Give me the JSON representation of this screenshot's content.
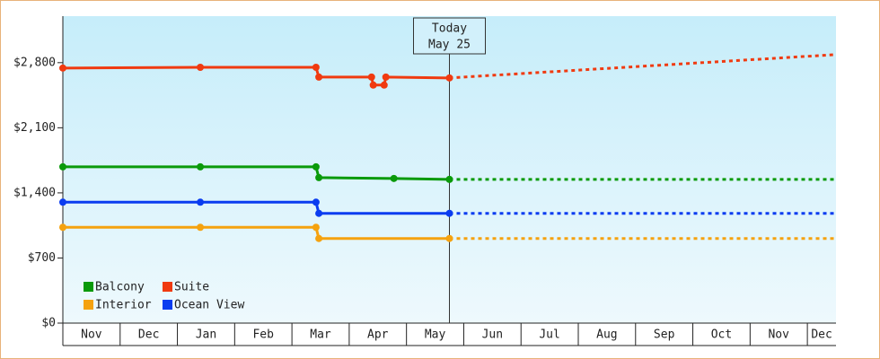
{
  "chart_data": {
    "type": "line",
    "categories": [
      "Nov",
      "Dec",
      "Jan",
      "Feb",
      "Mar",
      "Apr",
      "May",
      "Jun",
      "Jul",
      "Aug",
      "Sep",
      "Oct",
      "Nov",
      "Dec"
    ],
    "xlim": [
      0,
      13.5
    ],
    "ylim": [
      0,
      3300
    ],
    "yticks": [
      {
        "value": 0,
        "label": "$0"
      },
      {
        "value": 700,
        "label": "$700"
      },
      {
        "value": 1400,
        "label": "$1,400"
      },
      {
        "value": 2100,
        "label": "$2,100"
      },
      {
        "value": 2800,
        "label": "$2,800"
      }
    ],
    "annotation": {
      "x": 6.75,
      "lines": [
        "Today",
        "May 25"
      ]
    },
    "series": [
      {
        "name": "Balcony",
        "color": "#0a9a0a",
        "x": [
          0,
          2.4,
          4.42,
          4.47,
          5.78,
          6.75
        ],
        "values": [
          1680,
          1680,
          1680,
          1564,
          1555,
          1545
        ],
        "forecast": {
          "x": [
            6.75,
            13.5
          ],
          "values": [
            1545,
            1545
          ]
        }
      },
      {
        "name": "Suite",
        "color": "#f03a10",
        "x": [
          0,
          2.4,
          4.42,
          4.47,
          5.39,
          5.42,
          5.61,
          5.64,
          6.75
        ],
        "values": [
          2742,
          2750,
          2750,
          2645,
          2645,
          2559,
          2559,
          2645,
          2636
        ],
        "forecast": {
          "x": [
            6.75,
            13.5
          ],
          "values": [
            2636,
            2887
          ]
        }
      },
      {
        "name": "Interior",
        "color": "#f5a20f",
        "x": [
          0,
          2.4,
          4.42,
          4.47,
          6.75
        ],
        "values": [
          1030,
          1030,
          1030,
          910,
          910
        ],
        "forecast": {
          "x": [
            6.75,
            13.5
          ],
          "values": [
            910,
            910
          ]
        }
      },
      {
        "name": "Ocean View",
        "color": "#0a3cf0",
        "x": [
          0,
          2.4,
          4.42,
          4.47,
          6.75
        ],
        "values": [
          1300,
          1300,
          1300,
          1180,
          1180
        ],
        "forecast": {
          "x": [
            6.75,
            13.5
          ],
          "values": [
            1180,
            1180
          ]
        }
      }
    ]
  }
}
